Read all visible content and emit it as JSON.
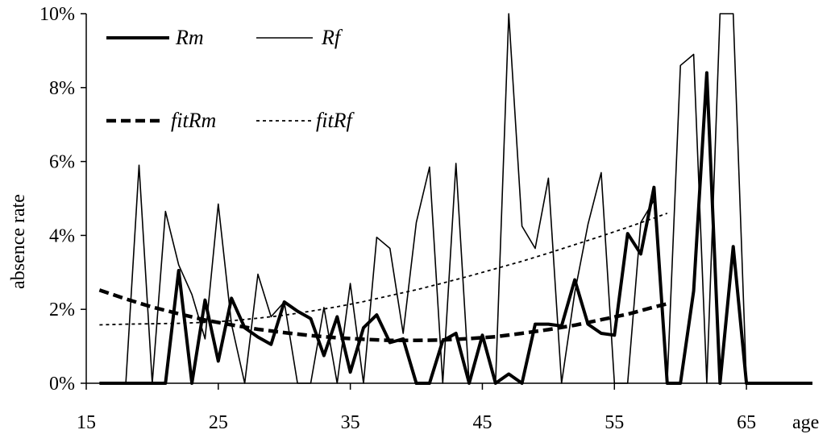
{
  "chart_data": {
    "type": "line",
    "xlabel": "age",
    "ylabel": "absence rate",
    "xlim": [
      15,
      70
    ],
    "ylim": [
      0,
      10
    ],
    "xticks": [
      15,
      25,
      35,
      45,
      55,
      65
    ],
    "yticks": [
      "0%",
      "2%",
      "4%",
      "6%",
      "8%",
      "10%"
    ],
    "legend": {
      "placement": "top-left"
    },
    "series": [
      {
        "name": "Rm",
        "style": "thick-solid",
        "x": [
          16,
          17,
          18,
          19,
          20,
          21,
          22,
          23,
          24,
          25,
          26,
          27,
          28,
          29,
          30,
          31,
          32,
          33,
          34,
          35,
          36,
          37,
          38,
          39,
          40,
          41,
          42,
          43,
          44,
          45,
          46,
          47,
          48,
          49,
          50,
          51,
          52,
          53,
          54,
          55,
          56,
          57,
          58,
          59,
          60,
          61,
          62,
          63,
          64,
          65,
          66,
          67,
          68,
          69,
          70
        ],
        "values": [
          0,
          0,
          0,
          0,
          0,
          0,
          3.05,
          0,
          2.25,
          0.6,
          2.3,
          1.5,
          1.25,
          1.05,
          2.2,
          1.95,
          1.75,
          0.75,
          1.8,
          0.3,
          1.5,
          1.85,
          1.1,
          1.2,
          0,
          0,
          1.15,
          1.35,
          0,
          1.3,
          0,
          0.25,
          0,
          1.6,
          1.6,
          1.55,
          2.8,
          1.6,
          1.35,
          1.3,
          4.05,
          3.5,
          5.3,
          0,
          0,
          2.5,
          8.4,
          0,
          3.7,
          0,
          0,
          0,
          0,
          0,
          0
        ]
      },
      {
        "name": "Rf",
        "style": "thin-solid",
        "x": [
          16,
          17,
          18,
          19,
          20,
          21,
          22,
          23,
          24,
          25,
          26,
          27,
          28,
          29,
          30,
          31,
          32,
          33,
          34,
          35,
          36,
          37,
          38,
          39,
          40,
          41,
          42,
          43,
          44,
          45,
          46,
          47,
          48,
          49,
          50,
          51,
          52,
          53,
          54,
          55,
          56,
          57,
          58,
          59,
          60,
          61,
          62,
          63,
          64,
          65,
          66,
          67,
          68,
          69,
          70
        ],
        "values": [
          0,
          0,
          0,
          5.9,
          0,
          4.65,
          3.2,
          2.4,
          1.2,
          4.85,
          1.6,
          0,
          2.95,
          1.8,
          2.2,
          0,
          0,
          2.05,
          0,
          2.7,
          0,
          3.95,
          3.65,
          1.35,
          4.35,
          5.85,
          0,
          5.95,
          0,
          1.3,
          0,
          10,
          4.25,
          3.65,
          5.55,
          0,
          2.45,
          4.3,
          5.7,
          0,
          0,
          4.35,
          4.95,
          0,
          8.6,
          8.9,
          0,
          10,
          10,
          0,
          0,
          0,
          0,
          0,
          0
        ]
      },
      {
        "name": "fitRm",
        "style": "thick-dashed",
        "x": [
          16,
          18,
          20,
          22,
          24,
          26,
          28,
          30,
          32,
          34,
          36,
          38,
          40,
          42,
          44,
          46,
          48,
          50,
          52,
          54,
          56,
          58,
          59
        ],
        "values": [
          2.52,
          2.28,
          2.06,
          1.88,
          1.71,
          1.58,
          1.46,
          1.37,
          1.29,
          1.23,
          1.19,
          1.16,
          1.16,
          1.17,
          1.21,
          1.26,
          1.35,
          1.45,
          1.57,
          1.72,
          1.87,
          2.06,
          2.15
        ]
      },
      {
        "name": "fitRf",
        "style": "thin-dotted",
        "x": [
          16,
          18,
          20,
          22,
          24,
          26,
          28,
          30,
          32,
          34,
          36,
          38,
          40,
          42,
          44,
          46,
          48,
          50,
          52,
          54,
          56,
          58,
          59
        ],
        "values": [
          1.58,
          1.6,
          1.61,
          1.62,
          1.65,
          1.69,
          1.76,
          1.84,
          1.95,
          2.07,
          2.21,
          2.37,
          2.53,
          2.71,
          2.9,
          3.1,
          3.3,
          3.52,
          3.75,
          3.98,
          4.22,
          4.47,
          4.6
        ]
      }
    ]
  }
}
